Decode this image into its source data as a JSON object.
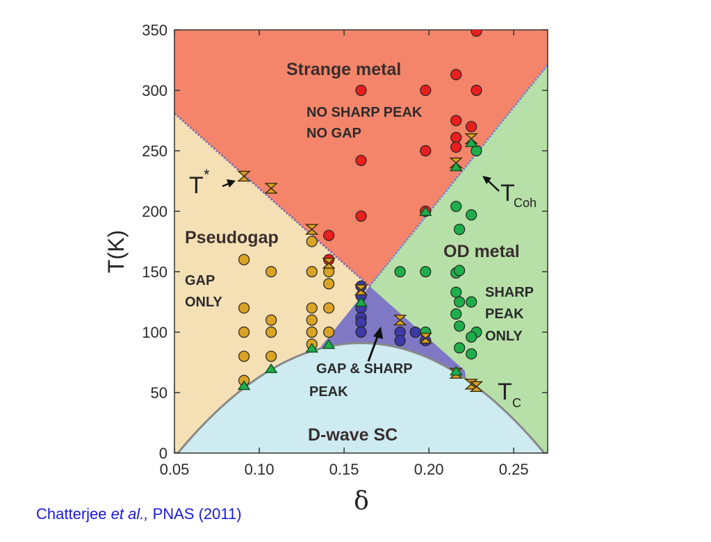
{
  "chart_data": {
    "type": "scatter",
    "xlabel": "δ",
    "ylabel": "T(K)",
    "xlim": [
      0.05,
      0.27
    ],
    "ylim": [
      0,
      350
    ],
    "x_ticks": [
      "0.05",
      "0.10",
      "0.15",
      "0.20",
      "0.25"
    ],
    "x_tick_values": [
      0.05,
      0.1,
      0.15,
      0.2,
      0.25
    ],
    "y_ticks": [
      "0",
      "50",
      "100",
      "150",
      "200",
      "250",
      "300",
      "350"
    ],
    "y_tick_values": [
      0,
      50,
      100,
      150,
      200,
      250,
      300,
      350
    ],
    "grid": false,
    "region_labels": {
      "strange_metal": "Strange metal",
      "strange_metal_note_1": "NO SHARP PEAK",
      "strange_metal_note_2": "NO GAP",
      "pseudogap": "Pseudogap",
      "pseudogap_note_1": "GAP",
      "pseudogap_note_2": "ONLY",
      "od_metal": "OD metal",
      "od_note_1": "SHARP",
      "od_note_2": "PEAK",
      "od_note_3": "ONLY",
      "gap_sharp_1": "GAP & SHARP",
      "gap_sharp_2": "PEAK",
      "dwave": "D-wave SC"
    },
    "annotations": {
      "tstar_main": "T",
      "tstar_sup": "*",
      "tcoh_main": "T",
      "tcoh_sub": "Coh",
      "tc_main": "T",
      "tc_sub": "C"
    },
    "region_colors": {
      "strange_metal": "#f4856a",
      "pseudogap": "#f5e0b5",
      "od_metal": "#b7e0a8",
      "gap_sharp": "#7f78c4",
      "dwave": "#cdebf1"
    },
    "boundaries": {
      "tstar_line": [
        [
          0.05,
          281
        ],
        [
          0.165,
          138
        ]
      ],
      "tcoh_line": [
        [
          0.165,
          138
        ],
        [
          0.27,
          321
        ]
      ],
      "tc_dome": {
        "peak_x": 0.16,
        "peak_T": 91,
        "zero_x": [
          0.052,
          0.268
        ]
      }
    },
    "series": [
      {
        "color": "#ea1e1e",
        "points": [
          [
            0.228,
            349
          ],
          [
            0.16,
            300
          ],
          [
            0.198,
            300
          ],
          [
            0.228,
            300
          ],
          [
            0.216,
            313
          ],
          [
            0.216,
            275
          ],
          [
            0.225,
            270
          ],
          [
            0.216,
            261
          ],
          [
            0.216,
            253
          ],
          [
            0.198,
            250
          ],
          [
            0.16,
            242
          ],
          [
            0.198,
            200
          ],
          [
            0.16,
            196
          ],
          [
            0.141,
            180
          ],
          [
            0.141,
            160
          ]
        ]
      },
      {
        "color": "#1fae4b",
        "points": [
          [
            0.228,
            250
          ],
          [
            0.216,
            204
          ],
          [
            0.225,
            197
          ],
          [
            0.218,
            185
          ],
          [
            0.183,
            150
          ],
          [
            0.198,
            150
          ],
          [
            0.216,
            149
          ],
          [
            0.218,
            151
          ],
          [
            0.216,
            133
          ],
          [
            0.218,
            125
          ],
          [
            0.225,
            125
          ],
          [
            0.216,
            115
          ],
          [
            0.218,
            105
          ],
          [
            0.198,
            100
          ],
          [
            0.228,
            100
          ],
          [
            0.225,
            96
          ],
          [
            0.218,
            87
          ],
          [
            0.225,
            82
          ]
        ]
      },
      {
        "color": "#d9a426",
        "points": [
          [
            0.091,
            160
          ],
          [
            0.091,
            120
          ],
          [
            0.091,
            100
          ],
          [
            0.091,
            80
          ],
          [
            0.091,
            60
          ],
          [
            0.107,
            150
          ],
          [
            0.107,
            110
          ],
          [
            0.107,
            100
          ],
          [
            0.107,
            80
          ],
          [
            0.131,
            175
          ],
          [
            0.131,
            150
          ],
          [
            0.131,
            120
          ],
          [
            0.131,
            110
          ],
          [
            0.131,
            100
          ],
          [
            0.131,
            90
          ],
          [
            0.141,
            150
          ],
          [
            0.141,
            140
          ],
          [
            0.141,
            120
          ],
          [
            0.141,
            100
          ]
        ]
      },
      {
        "color": "#3e3aa8",
        "points": [
          [
            0.16,
            138
          ],
          [
            0.16,
            130
          ],
          [
            0.16,
            120
          ],
          [
            0.16,
            112
          ],
          [
            0.16,
            108
          ],
          [
            0.16,
            100
          ],
          [
            0.183,
            100
          ],
          [
            0.183,
            93
          ],
          [
            0.192,
            100
          ],
          [
            0.198,
            93
          ]
        ]
      },
      {
        "color": "#d9a426",
        "marker": "hourglass",
        "points": [
          [
            0.091,
            229
          ],
          [
            0.107,
            219
          ],
          [
            0.131,
            185
          ],
          [
            0.141,
            157
          ],
          [
            0.16,
            135
          ],
          [
            0.183,
            110
          ],
          [
            0.198,
            95
          ],
          [
            0.216,
            240
          ],
          [
            0.225,
            260
          ],
          [
            0.216,
            66
          ],
          [
            0.225,
            57
          ],
          [
            0.228,
            55
          ]
        ]
      },
      {
        "color": "#1fae4b",
        "marker": "triangle",
        "points": [
          [
            0.091,
            56
          ],
          [
            0.107,
            70
          ],
          [
            0.131,
            87
          ],
          [
            0.141,
            90
          ],
          [
            0.16,
            125
          ],
          [
            0.198,
            200
          ],
          [
            0.216,
            237
          ],
          [
            0.225,
            257
          ],
          [
            0.216,
            68
          ]
        ]
      }
    ]
  },
  "citation": {
    "prefix": "Chatterjee",
    "italic": "et al.,",
    "suffix": "PNAS (2011)",
    "color": "#1a1ad8"
  }
}
